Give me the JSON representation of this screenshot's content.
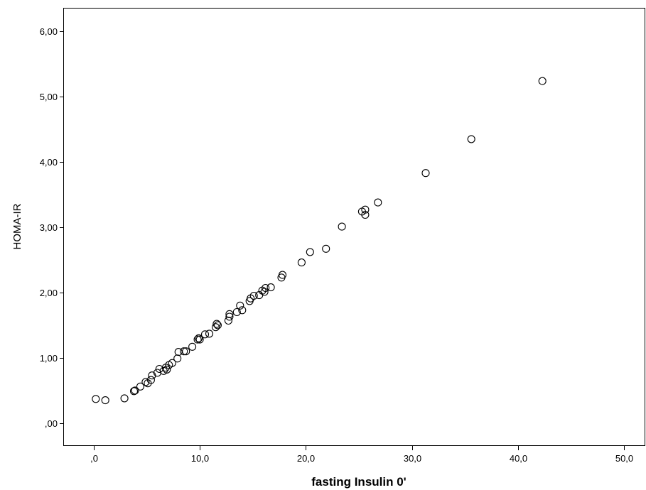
{
  "chart_data": {
    "type": "scatter",
    "title": "",
    "xlabel": "fasting Insulin 0'",
    "ylabel": "HOMA-IR",
    "xlim": [
      -2.8,
      52
    ],
    "ylim": [
      -0.35,
      6.35
    ],
    "grid": false,
    "x_ticks": [
      0,
      10,
      20,
      30,
      40,
      50
    ],
    "x_tick_labels": [
      ",0",
      "10,0",
      "20,0",
      "30,0",
      "40,0",
      "50,0"
    ],
    "y_ticks": [
      0,
      1,
      2,
      3,
      4,
      5,
      6
    ],
    "y_tick_labels": [
      ",00",
      "1,00",
      "2,00",
      "3,00",
      "4,00",
      "5,00",
      "6,00"
    ],
    "points": [
      {
        "x": 0.2,
        "y": 0.37
      },
      {
        "x": 1.1,
        "y": 0.35
      },
      {
        "x": 2.9,
        "y": 0.38
      },
      {
        "x": 3.8,
        "y": 0.49
      },
      {
        "x": 3.9,
        "y": 0.5
      },
      {
        "x": 4.4,
        "y": 0.56
      },
      {
        "x": 4.9,
        "y": 0.63
      },
      {
        "x": 5.1,
        "y": 0.61
      },
      {
        "x": 5.4,
        "y": 0.66
      },
      {
        "x": 5.5,
        "y": 0.73
      },
      {
        "x": 6.0,
        "y": 0.77
      },
      {
        "x": 6.2,
        "y": 0.83
      },
      {
        "x": 6.6,
        "y": 0.8
      },
      {
        "x": 6.8,
        "y": 0.85
      },
      {
        "x": 6.9,
        "y": 0.82
      },
      {
        "x": 7.1,
        "y": 0.89
      },
      {
        "x": 7.4,
        "y": 0.92
      },
      {
        "x": 7.9,
        "y": 0.99
      },
      {
        "x": 8.0,
        "y": 1.09
      },
      {
        "x": 8.5,
        "y": 1.1
      },
      {
        "x": 8.7,
        "y": 1.1
      },
      {
        "x": 9.3,
        "y": 1.17
      },
      {
        "x": 9.8,
        "y": 1.28
      },
      {
        "x": 9.9,
        "y": 1.3
      },
      {
        "x": 10.0,
        "y": 1.28
      },
      {
        "x": 10.5,
        "y": 1.36
      },
      {
        "x": 10.9,
        "y": 1.37
      },
      {
        "x": 11.5,
        "y": 1.47
      },
      {
        "x": 11.7,
        "y": 1.5
      },
      {
        "x": 11.6,
        "y": 1.52
      },
      {
        "x": 12.7,
        "y": 1.57
      },
      {
        "x": 12.8,
        "y": 1.63
      },
      {
        "x": 12.8,
        "y": 1.67
      },
      {
        "x": 13.5,
        "y": 1.7
      },
      {
        "x": 13.8,
        "y": 1.8
      },
      {
        "x": 14.0,
        "y": 1.73
      },
      {
        "x": 14.7,
        "y": 1.87
      },
      {
        "x": 14.8,
        "y": 1.91
      },
      {
        "x": 15.1,
        "y": 1.95
      },
      {
        "x": 15.6,
        "y": 1.96
      },
      {
        "x": 15.9,
        "y": 2.03
      },
      {
        "x": 16.1,
        "y": 2.01
      },
      {
        "x": 16.2,
        "y": 2.07
      },
      {
        "x": 16.7,
        "y": 2.08
      },
      {
        "x": 17.7,
        "y": 2.23
      },
      {
        "x": 17.8,
        "y": 2.27
      },
      {
        "x": 19.6,
        "y": 2.46
      },
      {
        "x": 20.4,
        "y": 2.62
      },
      {
        "x": 21.9,
        "y": 2.67
      },
      {
        "x": 23.4,
        "y": 3.01
      },
      {
        "x": 25.3,
        "y": 3.24
      },
      {
        "x": 25.6,
        "y": 3.27
      },
      {
        "x": 25.6,
        "y": 3.19
      },
      {
        "x": 26.8,
        "y": 3.38
      },
      {
        "x": 31.3,
        "y": 3.83
      },
      {
        "x": 35.6,
        "y": 4.35
      },
      {
        "x": 42.3,
        "y": 5.24
      }
    ]
  }
}
